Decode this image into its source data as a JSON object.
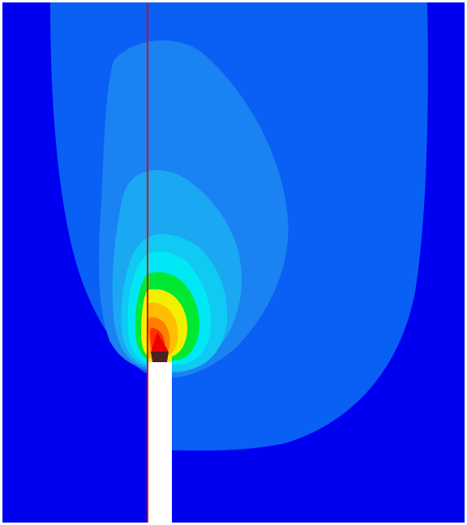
{
  "figure": {
    "colors": {
      "background": "#0000f0",
      "levels": [
        "#0a5ff5",
        "#1a82f2",
        "#1aa8f3",
        "#10caf4",
        "#00e8f5",
        "#00e832",
        "#f0f000",
        "#ffbf00",
        "#ff8000",
        "#ff3000",
        "#ee0000"
      ],
      "dark_cell": "#502020",
      "insert": "#ffffff",
      "frame": "#ffffff",
      "guide_line": "#e00000"
    }
  }
}
